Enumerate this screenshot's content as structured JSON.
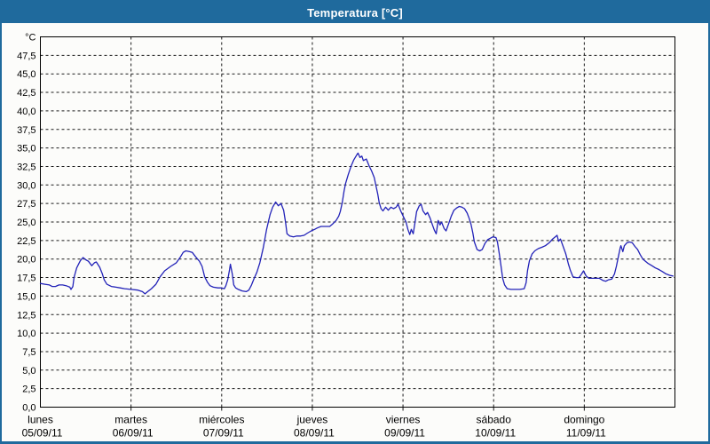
{
  "window": {
    "title": "Temperatura [°C]",
    "title_bar_color": "#1F6A9D",
    "border_color": "#1F6A9D",
    "background_color": "#FCFCFA"
  },
  "chart_data": {
    "type": "line",
    "title": "Temperatura [°C]",
    "grid": "dashed",
    "y_axis": {
      "unit_label": "°C",
      "min": 0,
      "max": 50,
      "tick_step": 2.5,
      "tick_labels": [
        "47,5",
        "45,0",
        "42,5",
        "40,0",
        "37,5",
        "35,0",
        "32,5",
        "30,0",
        "27,5",
        "25,0",
        "22,5",
        "20,0",
        "17,5",
        "15,0",
        "12,5",
        "10,0",
        "7,5",
        "5,0",
        "2,5",
        "0,0"
      ]
    },
    "x_axis": {
      "hours_total": 168,
      "days": [
        {
          "name": "lunes",
          "date": "05/09/11"
        },
        {
          "name": "martes",
          "date": "06/09/11"
        },
        {
          "name": "miércoles",
          "date": "07/09/11"
        },
        {
          "name": "jueves",
          "date": "08/09/11"
        },
        {
          "name": "viernes",
          "date": "09/09/11"
        },
        {
          "name": "sábado",
          "date": "10/09/11"
        },
        {
          "name": "domingo",
          "date": "11/09/11"
        }
      ]
    },
    "series": [
      {
        "name": "Temperatura",
        "color": "#2222B8",
        "points": [
          [
            0,
            16.7
          ],
          [
            1.2,
            16.6
          ],
          [
            2.4,
            16.5
          ],
          [
            3.1,
            16.3
          ],
          [
            4.0,
            16.3
          ],
          [
            4.9,
            16.5
          ],
          [
            5.9,
            16.5
          ],
          [
            6.8,
            16.4
          ],
          [
            7.8,
            16.2
          ],
          [
            8.1,
            15.9
          ],
          [
            8.6,
            16.3
          ],
          [
            8.9,
            17.5
          ],
          [
            9.6,
            18.8
          ],
          [
            10.2,
            19.4
          ],
          [
            10.6,
            19.8
          ],
          [
            11.3,
            20.2
          ],
          [
            12.0,
            19.9
          ],
          [
            12.7,
            19.7
          ],
          [
            13.6,
            19.1
          ],
          [
            14.3,
            19.5
          ],
          [
            14.8,
            19.6
          ],
          [
            15.7,
            18.9
          ],
          [
            16.4,
            18.0
          ],
          [
            16.9,
            17.2
          ],
          [
            17.6,
            16.6
          ],
          [
            18.8,
            16.3
          ],
          [
            20.0,
            16.2
          ],
          [
            21.1,
            16.1
          ],
          [
            22.3,
            16.0
          ],
          [
            24.0,
            15.9
          ],
          [
            25.8,
            15.8
          ],
          [
            27.0,
            15.6
          ],
          [
            27.7,
            15.3
          ],
          [
            28.4,
            15.6
          ],
          [
            29.4,
            16.0
          ],
          [
            30.6,
            16.6
          ],
          [
            31.7,
            17.6
          ],
          [
            32.9,
            18.4
          ],
          [
            34.5,
            19.0
          ],
          [
            36.0,
            19.5
          ],
          [
            37.1,
            20.3
          ],
          [
            37.8,
            20.9
          ],
          [
            38.5,
            21.1
          ],
          [
            39.5,
            21.0
          ],
          [
            40.2,
            20.9
          ],
          [
            41.1,
            20.3
          ],
          [
            42.1,
            19.7
          ],
          [
            42.8,
            19.0
          ],
          [
            43.5,
            17.6
          ],
          [
            44.2,
            16.9
          ],
          [
            44.9,
            16.4
          ],
          [
            45.8,
            16.2
          ],
          [
            47.0,
            16.1
          ],
          [
            47.9,
            16.1
          ],
          [
            48.7,
            16.0
          ],
          [
            49.1,
            16.4
          ],
          [
            49.6,
            17.2
          ],
          [
            50.1,
            18.6
          ],
          [
            50.3,
            19.3
          ],
          [
            50.8,
            18.0
          ],
          [
            51.2,
            16.5
          ],
          [
            51.7,
            16.1
          ],
          [
            52.4,
            15.9
          ],
          [
            53.4,
            15.7
          ],
          [
            54.5,
            15.6
          ],
          [
            55.2,
            15.8
          ],
          [
            55.9,
            16.5
          ],
          [
            56.6,
            17.4
          ],
          [
            57.3,
            18.2
          ],
          [
            58.1,
            19.5
          ],
          [
            59.0,
            21.5
          ],
          [
            59.9,
            24.0
          ],
          [
            60.8,
            26.0
          ],
          [
            61.5,
            27.0
          ],
          [
            62.3,
            27.7
          ],
          [
            63.0,
            27.2
          ],
          [
            63.7,
            27.5
          ],
          [
            64.4,
            26.6
          ],
          [
            64.9,
            25.0
          ],
          [
            65.3,
            23.4
          ],
          [
            66.0,
            23.1
          ],
          [
            67.0,
            23.0
          ],
          [
            67.9,
            23.1
          ],
          [
            68.9,
            23.1
          ],
          [
            69.8,
            23.2
          ],
          [
            70.7,
            23.5
          ],
          [
            71.7,
            23.8
          ],
          [
            72.6,
            24.0
          ],
          [
            73.3,
            24.2
          ],
          [
            74.3,
            24.4
          ],
          [
            75.4,
            24.4
          ],
          [
            76.6,
            24.4
          ],
          [
            77.3,
            24.7
          ],
          [
            78.3,
            25.2
          ],
          [
            79.0,
            25.8
          ],
          [
            79.4,
            26.4
          ],
          [
            79.9,
            27.6
          ],
          [
            80.4,
            29.2
          ],
          [
            80.8,
            30.2
          ],
          [
            81.5,
            31.4
          ],
          [
            82.3,
            32.6
          ],
          [
            83.0,
            33.4
          ],
          [
            83.7,
            34.0
          ],
          [
            84.1,
            34.3
          ],
          [
            84.6,
            33.7
          ],
          [
            85.1,
            33.9
          ],
          [
            85.5,
            33.3
          ],
          [
            86.3,
            33.5
          ],
          [
            87.0,
            32.6
          ],
          [
            87.7,
            31.9
          ],
          [
            88.4,
            31.0
          ],
          [
            88.8,
            30.0
          ],
          [
            89.3,
            28.8
          ],
          [
            89.7,
            27.6
          ],
          [
            90.2,
            26.8
          ],
          [
            90.7,
            26.5
          ],
          [
            91.4,
            27.0
          ],
          [
            92.1,
            26.6
          ],
          [
            92.8,
            27.0
          ],
          [
            93.5,
            26.8
          ],
          [
            94.2,
            27.0
          ],
          [
            94.7,
            27.4
          ],
          [
            95.4,
            26.5
          ],
          [
            96.4,
            25.4
          ],
          [
            96.8,
            25.0
          ],
          [
            97.3,
            24.0
          ],
          [
            97.8,
            23.3
          ],
          [
            98.2,
            24.0
          ],
          [
            98.7,
            23.4
          ],
          [
            99.2,
            25.0
          ],
          [
            99.6,
            26.4
          ],
          [
            100.3,
            27.2
          ],
          [
            100.8,
            27.4
          ],
          [
            101.3,
            26.5
          ],
          [
            102.0,
            26.0
          ],
          [
            102.5,
            26.3
          ],
          [
            103.2,
            25.5
          ],
          [
            103.6,
            24.9
          ],
          [
            104.3,
            23.9
          ],
          [
            104.8,
            23.4
          ],
          [
            105.3,
            25.2
          ],
          [
            105.8,
            24.6
          ],
          [
            106.2,
            25.0
          ],
          [
            106.9,
            24.1
          ],
          [
            107.4,
            23.8
          ],
          [
            108.1,
            24.8
          ],
          [
            108.8,
            25.8
          ],
          [
            109.5,
            26.6
          ],
          [
            110.2,
            26.9
          ],
          [
            110.9,
            27.1
          ],
          [
            111.6,
            27.0
          ],
          [
            112.3,
            26.8
          ],
          [
            113.0,
            26.2
          ],
          [
            113.5,
            25.5
          ],
          [
            114.0,
            24.7
          ],
          [
            114.5,
            23.5
          ],
          [
            114.9,
            22.3
          ],
          [
            115.6,
            21.3
          ],
          [
            116.3,
            21.1
          ],
          [
            117.0,
            21.3
          ],
          [
            117.7,
            22.1
          ],
          [
            118.4,
            22.6
          ],
          [
            119.1,
            22.8
          ],
          [
            119.8,
            23.0
          ],
          [
            120.6,
            22.9
          ],
          [
            121.0,
            22.3
          ],
          [
            121.5,
            20.7
          ],
          [
            122.0,
            18.9
          ],
          [
            122.4,
            17.4
          ],
          [
            122.9,
            16.5
          ],
          [
            123.6,
            16.0
          ],
          [
            124.6,
            15.9
          ],
          [
            125.7,
            15.9
          ],
          [
            126.9,
            15.9
          ],
          [
            128.1,
            16.0
          ],
          [
            128.6,
            16.8
          ],
          [
            129.0,
            18.5
          ],
          [
            129.5,
            19.8
          ],
          [
            130.2,
            20.7
          ],
          [
            130.9,
            21.1
          ],
          [
            131.8,
            21.4
          ],
          [
            132.8,
            21.6
          ],
          [
            133.7,
            21.8
          ],
          [
            134.7,
            22.2
          ],
          [
            135.6,
            22.7
          ],
          [
            136.3,
            23.0
          ],
          [
            136.8,
            23.2
          ],
          [
            137.2,
            22.4
          ],
          [
            137.7,
            22.7
          ],
          [
            138.4,
            21.7
          ],
          [
            139.1,
            20.7
          ],
          [
            139.8,
            19.3
          ],
          [
            140.3,
            18.5
          ],
          [
            141.0,
            17.6
          ],
          [
            141.9,
            17.5
          ],
          [
            142.6,
            17.5
          ],
          [
            143.3,
            18.0
          ],
          [
            143.8,
            18.4
          ],
          [
            144.5,
            17.7
          ],
          [
            145.2,
            17.4
          ],
          [
            146.2,
            17.4
          ],
          [
            147.1,
            17.4
          ],
          [
            148.0,
            17.4
          ],
          [
            149.0,
            17.1
          ],
          [
            149.7,
            17.0
          ],
          [
            150.4,
            17.2
          ],
          [
            151.3,
            17.3
          ],
          [
            152.0,
            18.0
          ],
          [
            152.5,
            19.0
          ],
          [
            153.0,
            20.3
          ],
          [
            153.5,
            21.5
          ],
          [
            153.7,
            21.8
          ],
          [
            154.2,
            21.0
          ],
          [
            154.6,
            21.8
          ],
          [
            155.3,
            22.2
          ],
          [
            156.0,
            22.3
          ],
          [
            156.7,
            22.2
          ],
          [
            157.4,
            21.7
          ],
          [
            158.1,
            21.3
          ],
          [
            158.8,
            20.6
          ],
          [
            159.5,
            20.0
          ],
          [
            160.2,
            19.7
          ],
          [
            160.9,
            19.4
          ],
          [
            161.9,
            19.1
          ],
          [
            162.8,
            18.8
          ],
          [
            163.7,
            18.6
          ],
          [
            164.7,
            18.3
          ],
          [
            165.6,
            18.0
          ],
          [
            166.6,
            17.8
          ],
          [
            167.5,
            17.7
          ]
        ]
      }
    ]
  }
}
